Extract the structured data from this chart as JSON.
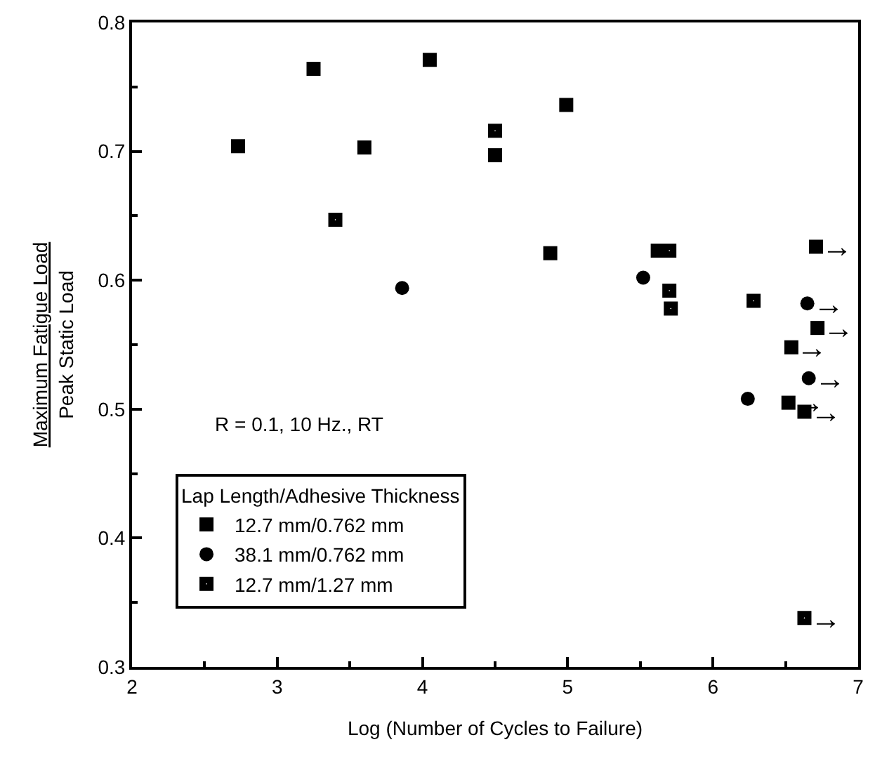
{
  "chart_data": {
    "type": "scatter",
    "xlabel": "Log (Number of Cycles to Failure)",
    "ylabel": "Maximum Fatigue Load\nPeak Static Load",
    "legend_title": "Lap Length/Adhesive Thickness",
    "legend": "bottom left",
    "grid": false,
    "xlim": [
      2,
      7
    ],
    "xticks": [
      2,
      3,
      4,
      5,
      6,
      7
    ],
    "ylim": [
      0.3,
      0.8
    ],
    "yticks": [
      0.3,
      0.4,
      0.5,
      0.6,
      0.7,
      0.8
    ],
    "series": [
      {
        "name": "12.7 mm/0.762 mm",
        "color": "#000000",
        "marker": "square",
        "x": [
          2.73,
          3.25,
          4.05,
          3.6,
          4.5,
          4.99,
          4.88,
          5.62,
          6.71,
          6.72,
          6.54,
          6.52,
          6.63
        ],
        "values": [
          0.704,
          0.764,
          0.771,
          0.703,
          0.697,
          0.736,
          0.621,
          0.623,
          0.626,
          0.563,
          0.548,
          0.505,
          0.498
        ]
      },
      {
        "name": "38.1 mm/0.762 mm",
        "color": "#000000",
        "marker": "circle",
        "x": [
          3.86,
          5.52,
          6.24,
          6.65,
          6.66
        ],
        "values": [
          0.594,
          0.602,
          0.508,
          0.582,
          0.524
        ]
      },
      {
        "name": "12.7 mm/1.27 mm",
        "color": "#000000",
        "marker": "square-dot",
        "x": [
          3.4,
          4.5,
          5.7,
          5.7,
          5.71,
          6.28,
          6.63
        ],
        "values": [
          0.647,
          0.716,
          0.623,
          0.592,
          0.578,
          0.584,
          0.338
        ]
      }
    ],
    "annotations": [
      "R = 0.1, 10 Hz., RT",
      {
        "text": "→",
        "x": 6.71,
        "y": 0.626
      },
      {
        "text": "→",
        "x": 6.65,
        "y": 0.582
      },
      {
        "text": "→",
        "x": 6.72,
        "y": 0.563
      },
      {
        "text": "→",
        "x": 6.54,
        "y": 0.548
      },
      {
        "text": "→",
        "x": 6.66,
        "y": 0.524
      },
      {
        "text": "→",
        "x": 6.52,
        "y": 0.505
      },
      {
        "text": "→",
        "x": 6.63,
        "y": 0.498
      },
      {
        "text": "→",
        "x": 6.63,
        "y": 0.338
      }
    ]
  }
}
